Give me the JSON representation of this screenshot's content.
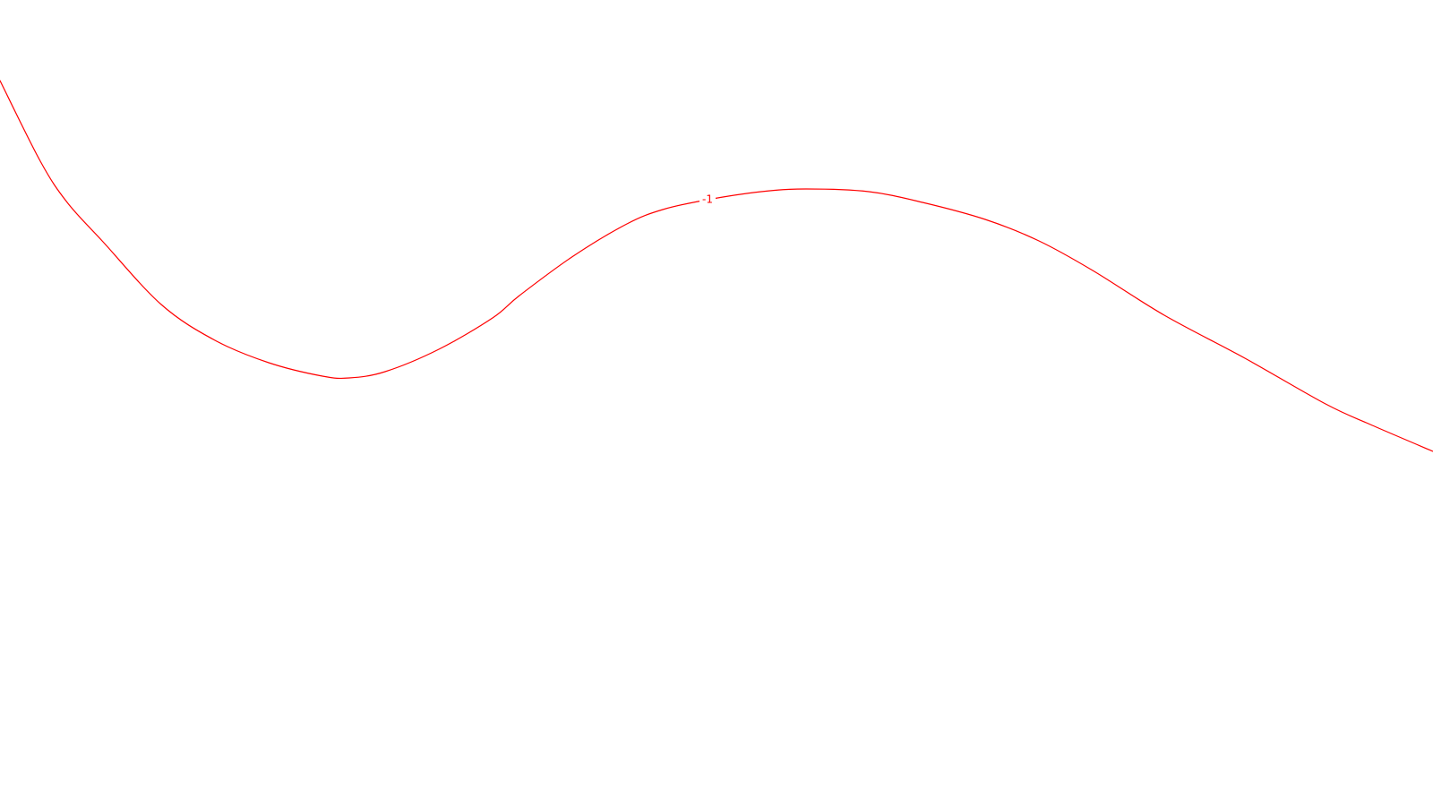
{
  "chart_data": {
    "type": "line",
    "series": [
      {
        "label": "-1",
        "color": "#ff0000",
        "points": [
          [
            0.0,
            0.0
          ],
          [
            45.0,
            -90.0
          ],
          [
            75.0,
            -136.0
          ],
          [
            115.0,
            -180.0
          ],
          [
            180.0,
            -250.0
          ],
          [
            240.0,
            -290.0
          ],
          [
            300.0,
            -315.0
          ],
          [
            360.0,
            -330.0
          ],
          [
            390.0,
            -332.0
          ],
          [
            430.0,
            -325.0
          ],
          [
            490.0,
            -300.0
          ],
          [
            550.0,
            -265.0
          ],
          [
            580.0,
            -240.0
          ],
          [
            640.0,
            -196.0
          ],
          [
            700.0,
            -160.0
          ],
          [
            740.0,
            -144.0
          ],
          [
            790.0,
            -133.0
          ],
          [
            850.0,
            -124.0
          ],
          [
            900.0,
            -121.0
          ],
          [
            970.0,
            -124.0
          ],
          [
            1030.0,
            -136.0
          ],
          [
            1100.0,
            -155.0
          ],
          [
            1160.0,
            -179.0
          ],
          [
            1220.0,
            -212.0
          ],
          [
            1300.0,
            -262.0
          ],
          [
            1390.0,
            -310.0
          ],
          [
            1480.0,
            -361.0
          ],
          [
            1530.0,
            -384.0
          ],
          [
            1600.0,
            -414.0
          ]
        ]
      }
    ],
    "xlim": [
      0,
      1600
    ],
    "ylim": [
      -810,
      90
    ],
    "grid": false,
    "label_position": {
      "series_index": 0,
      "point_index": 16
    }
  }
}
